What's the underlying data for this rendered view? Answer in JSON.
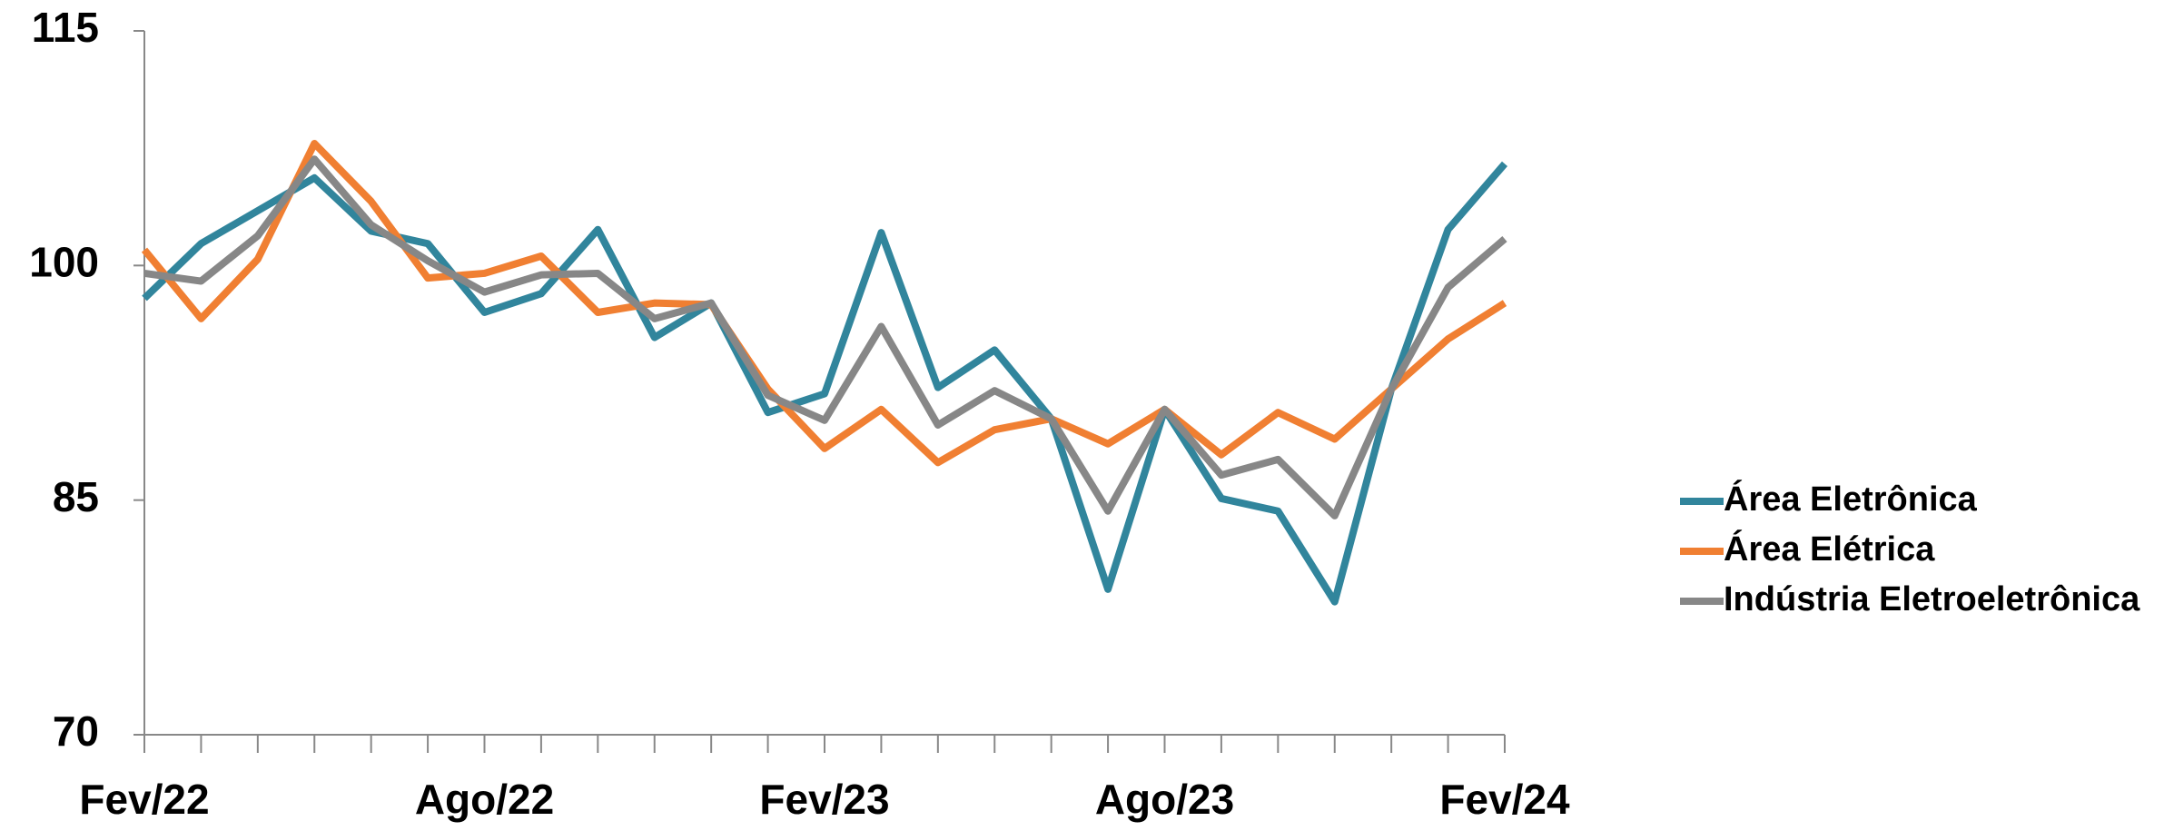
{
  "chart_data": {
    "type": "line",
    "categories": [
      "Fev/22",
      null,
      null,
      null,
      null,
      null,
      "Ago/22",
      null,
      null,
      null,
      null,
      null,
      "Fev/23",
      null,
      null,
      null,
      null,
      null,
      "Ago/23",
      null,
      null,
      null,
      null,
      null,
      "Fev/24"
    ],
    "series": [
      {
        "name": "Área Eletrônica",
        "color": "#31859c",
        "values": [
          97.9,
          101.4,
          103.5,
          105.6,
          102.2,
          101.4,
          97.0,
          98.2,
          102.3,
          95.4,
          97.6,
          90.6,
          91.8,
          102.1,
          92.2,
          94.6,
          90.2,
          79.3,
          90.8,
          85.1,
          84.3,
          78.5,
          92.1,
          102.3,
          106.5
        ]
      },
      {
        "name": "Área Elétrica",
        "color": "#f07f32",
        "values": [
          101.0,
          96.6,
          100.4,
          107.8,
          104.1,
          99.2,
          99.5,
          100.6,
          97.0,
          97.6,
          97.5,
          92.1,
          88.3,
          90.8,
          87.4,
          89.5,
          90.2,
          88.6,
          90.8,
          87.9,
          90.6,
          88.9,
          92.1,
          95.3,
          97.6
        ]
      },
      {
        "name": "Indústria Eletroeletrônica",
        "color": "#878787",
        "values": [
          99.5,
          99.0,
          101.9,
          106.8,
          102.6,
          100.3,
          98.3,
          99.4,
          99.5,
          96.6,
          97.6,
          91.7,
          90.1,
          96.1,
          89.8,
          92.0,
          90.2,
          84.3,
          90.8,
          86.6,
          87.6,
          84.0,
          92.1,
          98.6,
          101.7
        ]
      }
    ],
    "ylim": [
      70,
      115
    ],
    "yticks": [
      70,
      85,
      100,
      115
    ],
    "legend": "right"
  }
}
